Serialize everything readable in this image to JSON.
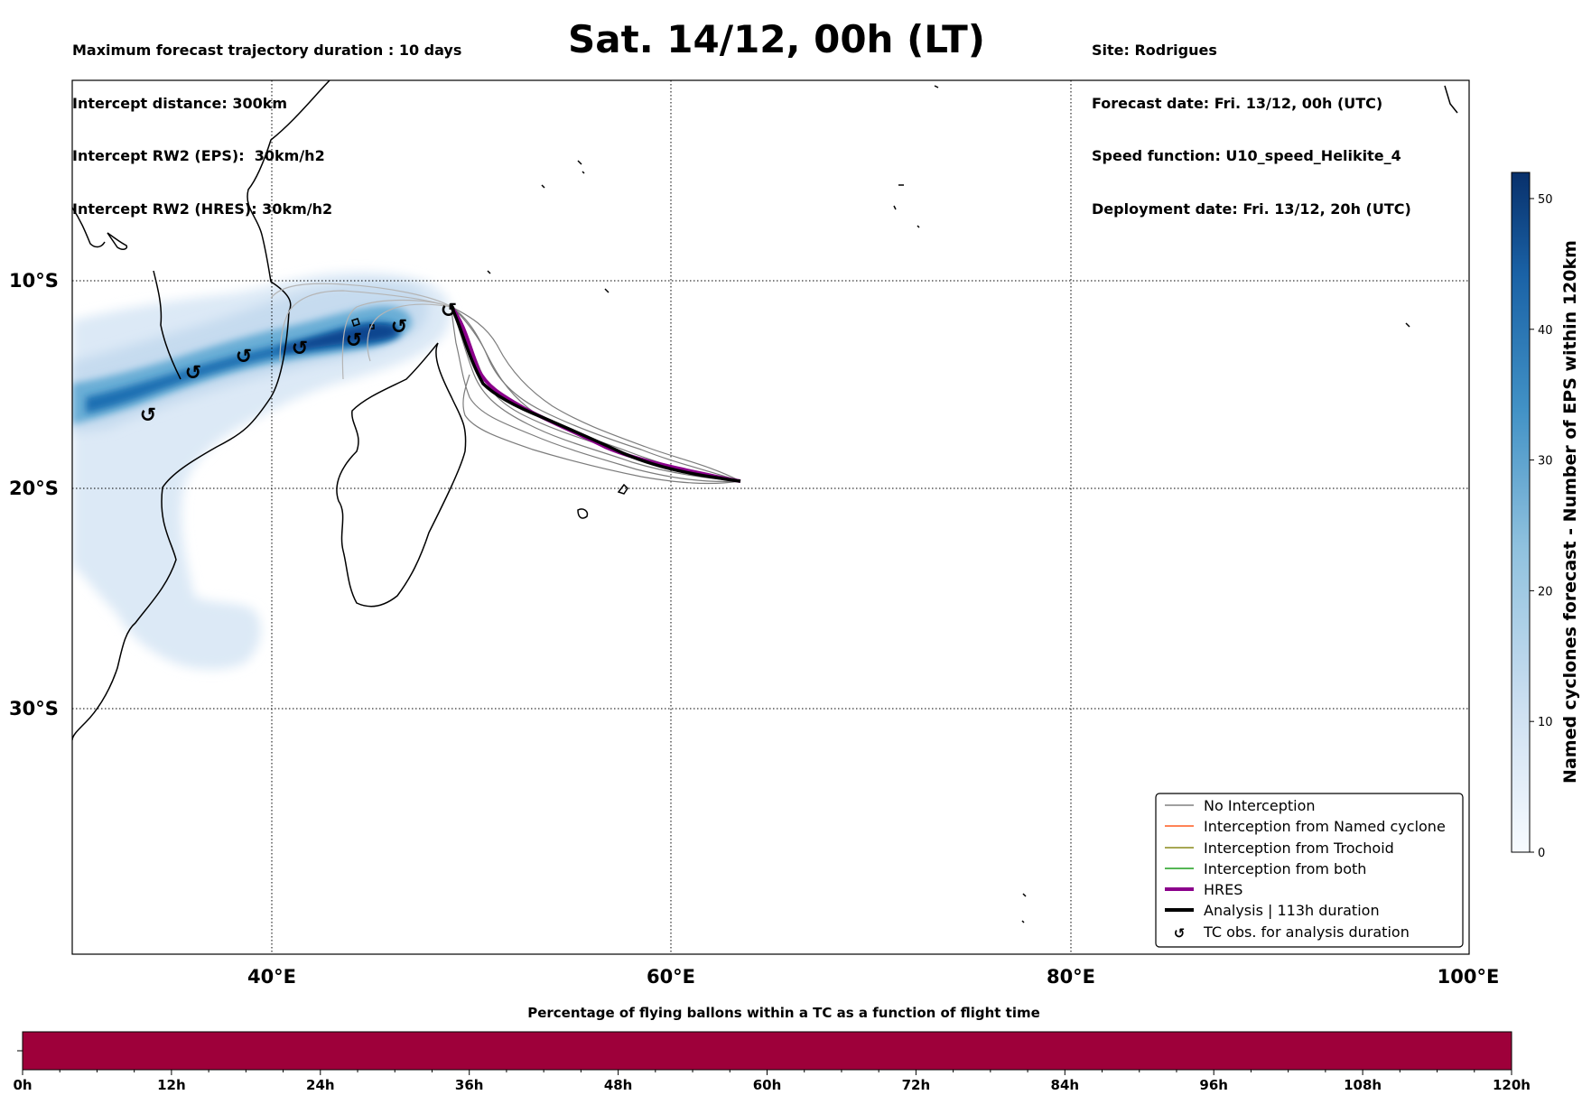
{
  "header": {
    "left_lines": [
      "Maximum forecast trajectory duration : 10 days",
      "Intercept distance: 300km",
      "Intercept RW2 (EPS):  30km/h2",
      "Intercept RW2 (HRES): 30km/h2"
    ],
    "right_lines": [
      "Site: Rodrigues",
      "Forecast date: Fri. 13/12, 00h (UTC)",
      "Speed function: U10_speed_Helikite_4",
      "Deployment date: Fri. 13/12, 20h (UTC)"
    ],
    "title": "Sat. 14/12, 00h (LT)"
  },
  "map": {
    "lat_labels": [
      "10°S",
      "20°S",
      "30°S"
    ],
    "lon_labels": [
      "40°E",
      "60°E",
      "80°E",
      "100°E"
    ],
    "legend": [
      {
        "label": "No Interception",
        "color": "#808080",
        "style": "line-thin"
      },
      {
        "label": "Interception from Named cyclone",
        "color": "#ff5a1f",
        "style": "line-thin"
      },
      {
        "label": "Interception from Trochoid",
        "color": "#8a8a1a",
        "style": "line-thin"
      },
      {
        "label": "Interception from both",
        "color": "#1f9e1f",
        "style": "line-thin"
      },
      {
        "label": "HRES",
        "color": "#8b008b",
        "style": "line-thick"
      },
      {
        "label": "Analysis | 113h duration",
        "color": "#000000",
        "style": "line-thick"
      },
      {
        "label": "TC obs. for analysis duration",
        "color": "#000000",
        "style": "tc-symbol"
      }
    ],
    "colors": {
      "density_light": "#dce9f6",
      "density_mid": "#6aaed6",
      "density_dark": "#08458e",
      "hres": "#8b008b",
      "analysis": "#000000",
      "ensemble": "#6e6e6e"
    },
    "tc_symbol": "↺"
  },
  "colorbar_right": {
    "label": "Named cyclones forecast - Number of EPS within 120km",
    "ticks": [
      "0",
      "10",
      "20",
      "30",
      "40",
      "50"
    ],
    "min": 0,
    "max": 52
  },
  "colorbar_bottom": {
    "title": "Percentage of flying ballons within a TC as a function of flight time",
    "ticks": [
      "0h",
      "12h",
      "24h",
      "36h",
      "48h",
      "60h",
      "72h",
      "84h",
      "96h",
      "108h",
      "120h"
    ],
    "fill_color": "#9e003a"
  }
}
